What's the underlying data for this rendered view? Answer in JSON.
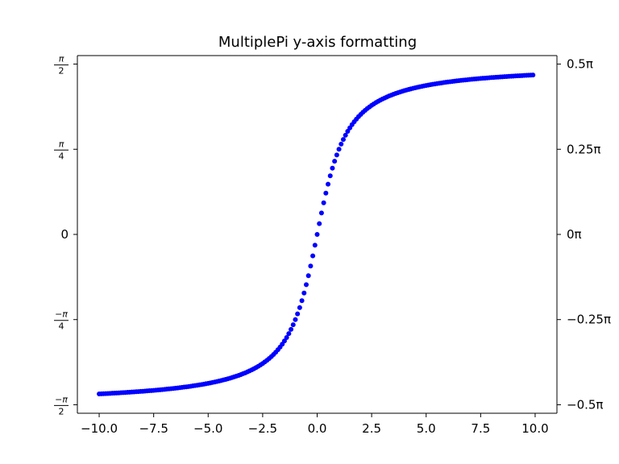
{
  "chart_data": {
    "type": "scatter",
    "title": "MultiplePi y-axis formatting",
    "xlabel": "",
    "ylabel": "",
    "xlim": [
      -11,
      11
    ],
    "ylim": [
      -1.6493,
      1.6493
    ],
    "grid": false,
    "x_ticks": [
      {
        "value": -10.0,
        "label": "−10.0"
      },
      {
        "value": -7.5,
        "label": "−7.5"
      },
      {
        "value": -5.0,
        "label": "−5.0"
      },
      {
        "value": -2.5,
        "label": "−2.5"
      },
      {
        "value": 0.0,
        "label": "0.0"
      },
      {
        "value": 2.5,
        "label": "2.5"
      },
      {
        "value": 5.0,
        "label": "5.0"
      },
      {
        "value": 7.5,
        "label": "7.5"
      },
      {
        "value": 10.0,
        "label": "10.0"
      }
    ],
    "y_ticks_left": [
      {
        "value": 1.5708,
        "num": "π",
        "den": "2"
      },
      {
        "value": 0.7854,
        "num": "π",
        "den": "4"
      },
      {
        "value": 0.0,
        "text": "0"
      },
      {
        "value": -0.7854,
        "num": "−π",
        "den": "4"
      },
      {
        "value": -1.5708,
        "num": "−π",
        "den": "2"
      }
    ],
    "y_ticks_right": [
      {
        "value": 1.5708,
        "label": "0.5π"
      },
      {
        "value": 0.7854,
        "label": "0.25π"
      },
      {
        "value": 0.0,
        "label": "0π"
      },
      {
        "value": -0.7854,
        "label": "−0.25π"
      },
      {
        "value": -1.5708,
        "label": "−0.5π"
      }
    ],
    "series": [
      {
        "function": "arctan",
        "x_start": -10.0,
        "x_end": 9.9,
        "x_step": 0.1,
        "color": "#0000ff"
      }
    ]
  }
}
